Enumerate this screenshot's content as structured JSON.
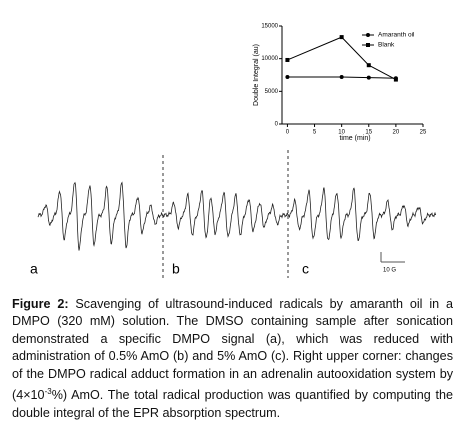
{
  "chart_data": {
    "type": "line",
    "ylabel": "Double Integral (au)",
    "xlabel": "time (min)",
    "x": [
      0,
      10,
      15,
      20
    ],
    "series": [
      {
        "name": "Amaranth oil",
        "color": "#000000",
        "marker": "circle",
        "values": [
          7200,
          7200,
          7100,
          7000
        ]
      },
      {
        "name": "Blank",
        "color": "#000000",
        "marker": "square",
        "values": [
          9800,
          13300,
          9000,
          6800
        ]
      }
    ],
    "xlim": [
      -1,
      25
    ],
    "xticks": [
      0,
      5,
      10,
      15,
      20,
      25
    ],
    "ylim": [
      0,
      15000
    ],
    "yticks": [
      0,
      5000,
      10000,
      15000
    ],
    "legend": "upper right"
  },
  "spectrum": {
    "panel_labels": [
      "a",
      "b",
      "c"
    ],
    "scale_bar": "10 G"
  },
  "caption": {
    "label": "Figure 2:",
    "text": "Scavenging of ultrasound-induced radicals by amaranth oil in a DMPO (320 mM) solution. The DMSO containing sample after sonication demonstrated a specific DMPO signal (a), which was reduced with administration of 0.5% AmO (b) and 5% AmO (c). Right upper corner: changes of the DMPO radical adduct formation in an adrenalin autooxidation system by (4×10",
    "superscript": "-3",
    "text_end": "%) AmO. The total radical production was quantified by computing the double integral of the EPR absorption spectrum."
  }
}
